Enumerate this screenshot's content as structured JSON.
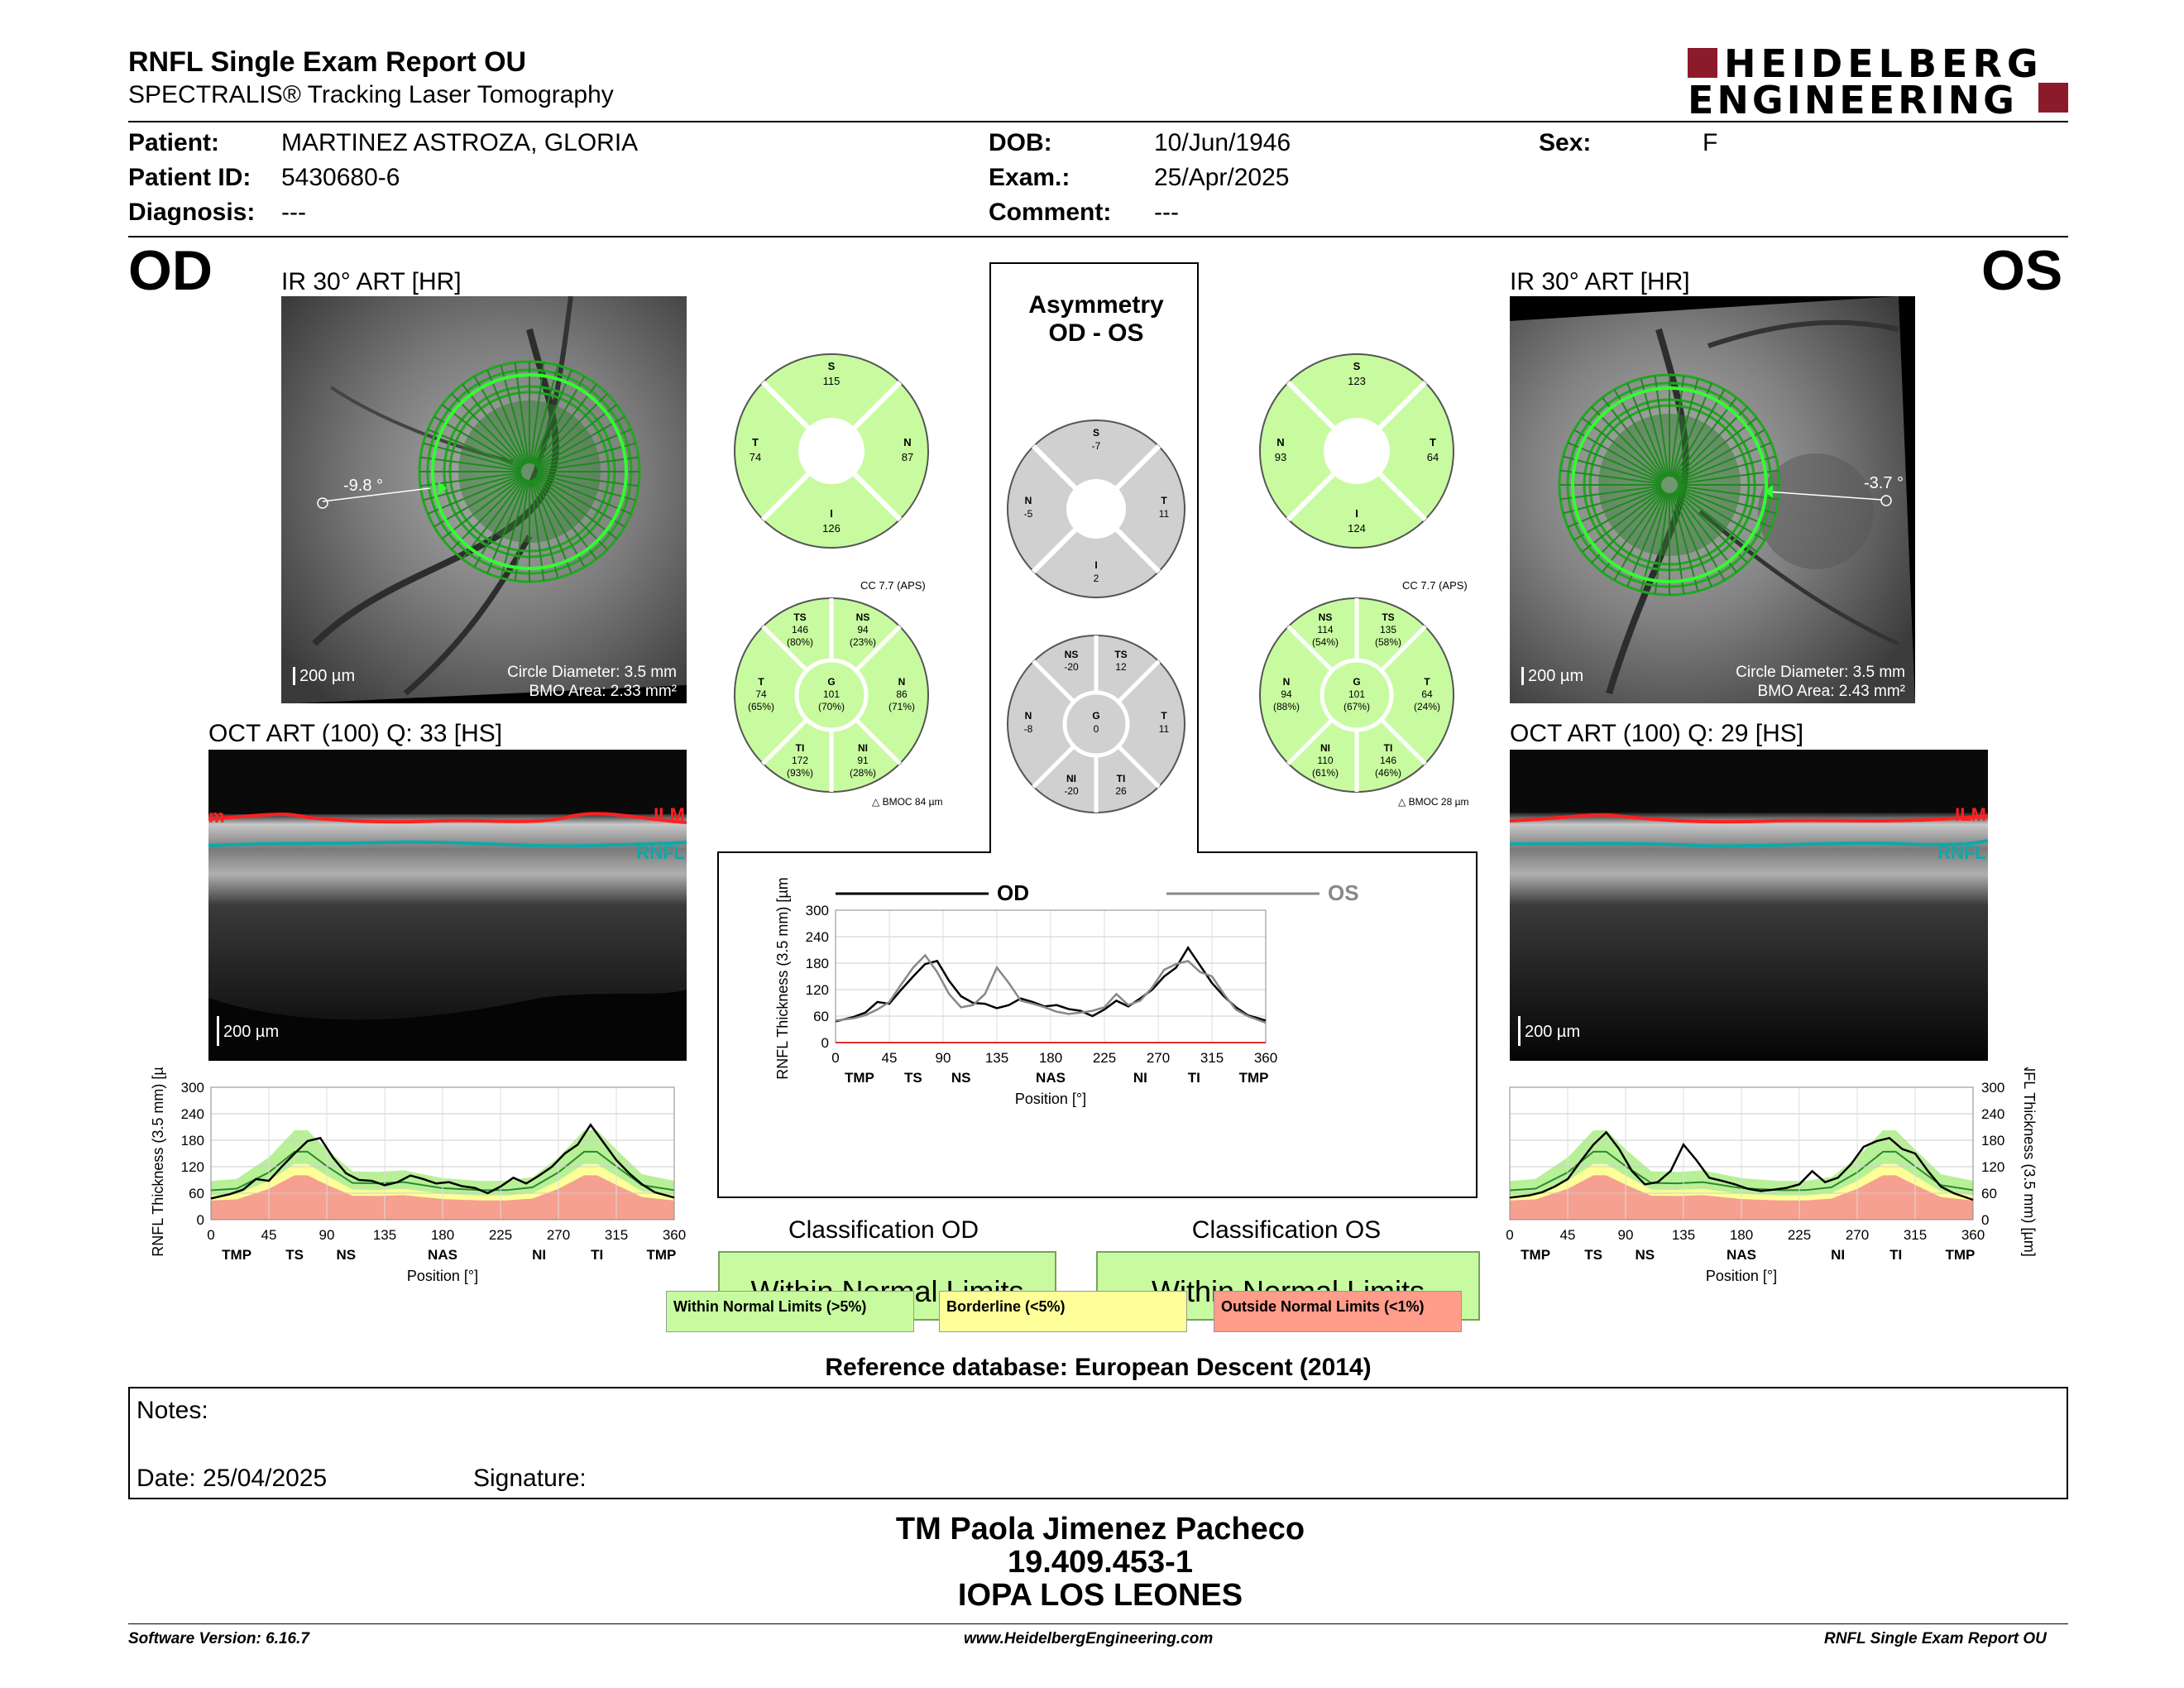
{
  "header": {
    "title": "RNFL Single Exam Report OU",
    "subtitle": "SPECTRALIS® Tracking Laser Tomography",
    "brand_line1": "HEIDELBERG",
    "brand_line2": "ENGINEERING"
  },
  "patient": {
    "patient_label": "Patient:",
    "patient_value": "MARTINEZ ASTROZA, GLORIA",
    "id_label": "Patient ID:",
    "id_value": "5430680-6",
    "diag_label": "Diagnosis:",
    "diag_value": "---",
    "dob_label": "DOB:",
    "dob_value": "10/Jun/1946",
    "exam_label": "Exam.:",
    "exam_value": "25/Apr/2025",
    "comment_label": "Comment:",
    "comment_value": "---",
    "sex_label": "Sex:",
    "sex_value": "F"
  },
  "od": {
    "eye": "OD",
    "ir_caption": "IR 30° ART [HR]",
    "angle": "-9.8 °",
    "scale": "200 µm",
    "circle_diameter": "Circle Diameter: 3.5 mm",
    "bmo_area": "BMO Area: 2.33 mm²",
    "oct_caption": "OCT ART (100) Q: 33 [HS]",
    "ilm": "ILM",
    "rnfl": "RNFL",
    "ilm_left": "m",
    "oct_scale": "200 µm",
    "classification_title": "Classification OD",
    "classification_value": "Within Normal Limits",
    "quad": {
      "S": "115",
      "T": "74",
      "N": "87",
      "I": "126"
    },
    "sector": {
      "TS": "146",
      "TS_p": "(80%)",
      "NS": "94",
      "NS_p": "(23%)",
      "T": "74",
      "T_p": "(65%)",
      "G": "101",
      "G_p": "(70%)",
      "N": "86",
      "N_p": "(71%)",
      "TI": "172",
      "TI_p": "(93%)",
      "NI": "91",
      "NI_p": "(28%)"
    },
    "cc": "CC 7.7 (APS)",
    "bmoc": "BMOC 84 µm"
  },
  "os": {
    "eye": "OS",
    "ir_caption": "IR 30° ART [HR]",
    "angle": "-3.7 °",
    "scale": "200 µm",
    "circle_diameter": "Circle Diameter: 3.5 mm",
    "bmo_area": "BMO Area: 2.43 mm²",
    "oct_caption": "OCT ART (100) Q: 29 [HS]",
    "ilm": "ILM",
    "rnfl": "RNFL",
    "oct_scale": "200 µm",
    "classification_title": "Classification OS",
    "classification_value": "Within Normal Limits",
    "quad": {
      "S": "123",
      "N": "93",
      "T": "64",
      "I": "124"
    },
    "sector": {
      "NS": "114",
      "NS_p": "(54%)",
      "TS": "135",
      "TS_p": "(58%)",
      "N": "94",
      "N_p": "(88%)",
      "G": "101",
      "G_p": "(67%)",
      "T": "64",
      "T_p": "(24%)",
      "NI": "110",
      "NI_p": "(61%)",
      "TI": "146",
      "TI_p": "(46%)"
    },
    "cc": "CC 7.7 (APS)",
    "bmoc": "BMOC 28 µm"
  },
  "asym": {
    "title1": "Asymmetry",
    "title2": "OD - OS",
    "quad": {
      "S": "-7",
      "N": "-5",
      "T": "11",
      "I": "2"
    },
    "sector": {
      "NS": "-20",
      "TS": "12",
      "N": "-8",
      "G": "0",
      "T": "11",
      "NI": "-20",
      "TI": "26"
    }
  },
  "sector_letters": {
    "S": "S",
    "T": "T",
    "N": "N",
    "I": "I",
    "TS": "TS",
    "NS": "NS",
    "G": "G",
    "TI": "TI",
    "NI": "NI"
  },
  "legend": {
    "wnl": "Within Normal Limits (>5%)",
    "bl": "Borderline (<5%)",
    "onl": "Outside Normal Limits (<1%)",
    "colors": {
      "green": "#c8fba0",
      "yellow": "#ffff99",
      "red": "#ff9c8a",
      "green_dark": "#98e878",
      "red_band": "#f28070"
    }
  },
  "reference": "Reference database: European Descent (2014)",
  "notes": {
    "label": "Notes:",
    "date_label": "Date: 25/04/2025",
    "signature_label": "Signature:"
  },
  "signer": {
    "line1": "TM Paola Jimenez Pacheco",
    "line2": "19.409.453-1",
    "line3": "IOPA LOS LEONES"
  },
  "footer": {
    "left": "Software Version: 6.16.7",
    "center": "www.HeidelbergEngineering.com",
    "right": "RNFL Single Exam Report OU"
  },
  "chart_data": [
    {
      "type": "line",
      "title": "",
      "xlabel": "Position [°]",
      "ylabel": "RNFL Thickness (3.5 mm) [µm]",
      "xlim": [
        0,
        360
      ],
      "ylim": [
        0,
        300
      ],
      "x_ticks": [
        0,
        45,
        90,
        135,
        180,
        225,
        270,
        315,
        360
      ],
      "y_ticks": [
        0,
        60,
        120,
        180,
        240,
        300
      ],
      "region_labels": [
        "TMP",
        "TS",
        "NS",
        "NAS",
        "NI",
        "TI",
        "TMP"
      ],
      "region_positions": [
        20,
        65,
        105,
        180,
        255,
        300,
        350
      ],
      "legend": [
        "OD",
        "OS"
      ],
      "series": [
        {
          "name": "OD",
          "x": [
            0,
            15,
            25,
            35,
            45,
            55,
            65,
            75,
            85,
            95,
            105,
            115,
            125,
            135,
            145,
            155,
            165,
            175,
            185,
            195,
            205,
            215,
            225,
            235,
            245,
            255,
            265,
            275,
            285,
            295,
            305,
            315,
            325,
            335,
            345,
            360
          ],
          "y": [
            48,
            58,
            68,
            92,
            88,
            120,
            150,
            178,
            185,
            140,
            105,
            90,
            88,
            78,
            85,
            100,
            92,
            82,
            85,
            76,
            72,
            60,
            75,
            95,
            82,
            100,
            120,
            150,
            170,
            215,
            175,
            135,
            105,
            80,
            62,
            50
          ]
        },
        {
          "name": "OS",
          "x": [
            0,
            15,
            25,
            35,
            45,
            55,
            65,
            75,
            85,
            95,
            105,
            115,
            125,
            135,
            145,
            155,
            165,
            175,
            185,
            195,
            205,
            215,
            225,
            235,
            245,
            255,
            265,
            275,
            285,
            295,
            305,
            315,
            325,
            335,
            345,
            360
          ],
          "y": [
            50,
            55,
            62,
            75,
            92,
            132,
            170,
            198,
            160,
            110,
            80,
            85,
            110,
            170,
            135,
            95,
            88,
            80,
            70,
            65,
            68,
            72,
            80,
            110,
            85,
            95,
            125,
            165,
            178,
            185,
            160,
            150,
            110,
            75,
            60,
            45
          ]
        }
      ]
    },
    {
      "type": "area",
      "title": "",
      "xlabel": "Position [°]",
      "ylabel": "RNFL Thickness (3.5 mm) [µm]",
      "xlim": [
        0,
        360
      ],
      "ylim": [
        0,
        300
      ],
      "x_ticks": [
        0,
        45,
        90,
        135,
        180,
        225,
        270,
        315,
        360
      ],
      "y_ticks": [
        0,
        60,
        120,
        180,
        240,
        300
      ],
      "region_labels": [
        "TMP",
        "TS",
        "NS",
        "NAS",
        "NI",
        "TI",
        "TMP"
      ],
      "series": [
        {
          "name": "OD",
          "x": [
            0,
            15,
            25,
            35,
            45,
            55,
            65,
            75,
            85,
            95,
            105,
            115,
            125,
            135,
            145,
            155,
            165,
            175,
            185,
            195,
            205,
            215,
            225,
            235,
            245,
            255,
            265,
            275,
            285,
            295,
            305,
            315,
            325,
            335,
            345,
            360
          ],
          "y": [
            48,
            58,
            68,
            92,
            88,
            120,
            150,
            178,
            185,
            140,
            105,
            90,
            88,
            78,
            85,
            100,
            92,
            82,
            85,
            76,
            72,
            60,
            75,
            95,
            82,
            100,
            120,
            150,
            170,
            215,
            175,
            135,
            105,
            80,
            62,
            50
          ]
        }
      ]
    },
    {
      "type": "area",
      "title": "",
      "xlabel": "Position [°]",
      "ylabel": "RNFL Thickness (3.5 mm) [µm]",
      "xlim": [
        0,
        360
      ],
      "ylim": [
        0,
        300
      ],
      "x_ticks": [
        0,
        45,
        90,
        135,
        180,
        225,
        270,
        315,
        360
      ],
      "y_ticks": [
        0,
        60,
        120,
        180,
        240,
        300
      ],
      "region_labels": [
        "TMP",
        "TS",
        "NS",
        "NAS",
        "NI",
        "TI",
        "TMP"
      ],
      "series": [
        {
          "name": "OS",
          "x": [
            0,
            15,
            25,
            35,
            45,
            55,
            65,
            75,
            85,
            95,
            105,
            115,
            125,
            135,
            145,
            155,
            165,
            175,
            185,
            195,
            205,
            215,
            225,
            235,
            245,
            255,
            265,
            275,
            285,
            295,
            305,
            315,
            325,
            335,
            345,
            360
          ],
          "y": [
            50,
            55,
            62,
            75,
            92,
            132,
            170,
            198,
            160,
            110,
            80,
            85,
            110,
            170,
            135,
            95,
            88,
            80,
            70,
            65,
            68,
            72,
            80,
            110,
            85,
            95,
            125,
            165,
            178,
            185,
            160,
            150,
            110,
            75,
            60,
            45
          ]
        }
      ]
    }
  ]
}
